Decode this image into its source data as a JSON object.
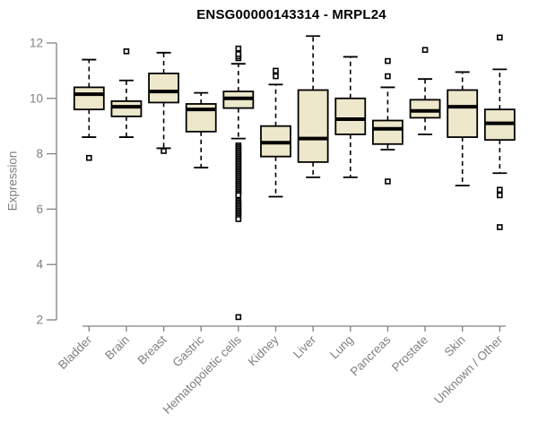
{
  "chart_data": {
    "type": "boxplot",
    "title": "ENSG00000143314 - MRPL24",
    "ylabel": "Expression",
    "xlabel": "",
    "ylim": [
      2,
      12.3
    ],
    "yticks": [
      2,
      4,
      6,
      8,
      10,
      12
    ],
    "grid": false,
    "legend": "none",
    "colors": {
      "box_fill": "#EDE7CB",
      "box_stroke": "#000000",
      "median": "#000000",
      "axis": "#808080",
      "tick_label": "#808080",
      "title": "#000000"
    },
    "categories": [
      "Bladder",
      "Brain",
      "Breast",
      "Gastric",
      "Hematopoietic cells",
      "Kidney",
      "Liver",
      "Lung",
      "Pancreas",
      "Prostate",
      "Skin",
      "Unknown / Other"
    ],
    "boxes": [
      {
        "category": "Bladder",
        "whisker_low": 8.6,
        "q1": 9.6,
        "median": 10.15,
        "q3": 10.4,
        "whisker_high": 11.4,
        "outliers": [
          7.85
        ]
      },
      {
        "category": "Brain",
        "whisker_low": 8.6,
        "q1": 9.35,
        "median": 9.7,
        "q3": 9.9,
        "whisker_high": 10.65,
        "outliers": [
          11.7
        ]
      },
      {
        "category": "Breast",
        "whisker_low": 8.2,
        "q1": 9.85,
        "median": 10.25,
        "q3": 10.9,
        "whisker_high": 11.65,
        "outliers": [
          8.1
        ]
      },
      {
        "category": "Gastric",
        "whisker_low": 7.5,
        "q1": 8.8,
        "median": 9.6,
        "q3": 9.8,
        "whisker_high": 10.2,
        "outliers": []
      },
      {
        "category": "Hematopoietic cells",
        "whisker_low": 8.55,
        "q1": 9.65,
        "median": 10.0,
        "q3": 10.25,
        "whisker_high": 11.25,
        "outliers": [
          11.45,
          11.52,
          11.6,
          11.8,
          8.3,
          8.24,
          8.18,
          8.12,
          8.06,
          8.0,
          7.94,
          7.88,
          7.82,
          7.76,
          7.7,
          7.64,
          7.58,
          7.52,
          7.46,
          7.4,
          7.34,
          7.28,
          7.22,
          7.16,
          7.1,
          7.04,
          6.98,
          6.92,
          6.86,
          6.8,
          6.74,
          6.68,
          6.62,
          6.56,
          6.5,
          6.3,
          6.24,
          6.18,
          6.12,
          6.06,
          6.0,
          5.94,
          5.88,
          5.82,
          5.76,
          5.7,
          5.64,
          2.1
        ]
      },
      {
        "category": "Kidney",
        "whisker_low": 6.45,
        "q1": 7.9,
        "median": 8.4,
        "q3": 9.0,
        "whisker_high": 10.5,
        "outliers": [
          10.8,
          11.0
        ]
      },
      {
        "category": "Liver",
        "whisker_low": 7.15,
        "q1": 7.7,
        "median": 8.55,
        "q3": 10.3,
        "whisker_high": 12.25,
        "outliers": []
      },
      {
        "category": "Lung",
        "whisker_low": 7.15,
        "q1": 8.7,
        "median": 9.25,
        "q3": 10.0,
        "whisker_high": 11.5,
        "outliers": []
      },
      {
        "category": "Pancreas",
        "whisker_low": 8.15,
        "q1": 8.35,
        "median": 8.9,
        "q3": 9.2,
        "whisker_high": 10.4,
        "outliers": [
          10.8,
          11.35,
          7.0
        ]
      },
      {
        "category": "Prostate",
        "whisker_low": 8.7,
        "q1": 9.3,
        "median": 9.55,
        "q3": 9.95,
        "whisker_high": 10.7,
        "outliers": [
          11.75
        ]
      },
      {
        "category": "Skin",
        "whisker_low": 6.85,
        "q1": 8.6,
        "median": 9.7,
        "q3": 10.3,
        "whisker_high": 10.95,
        "outliers": []
      },
      {
        "category": "Unknown / Other",
        "whisker_low": 7.3,
        "q1": 8.5,
        "median": 9.1,
        "q3": 9.6,
        "whisker_high": 11.05,
        "outliers": [
          12.2,
          6.7,
          6.5,
          5.35
        ]
      }
    ]
  }
}
